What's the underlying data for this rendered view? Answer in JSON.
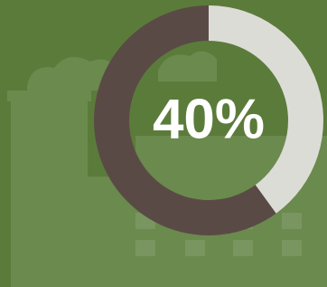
{
  "chart_data": {
    "type": "donut",
    "values": [
      40,
      60
    ],
    "value_labels": [
      "40%",
      null
    ],
    "colors": [
      "#dcdcd7",
      "#5a4a45"
    ]
  }
}
